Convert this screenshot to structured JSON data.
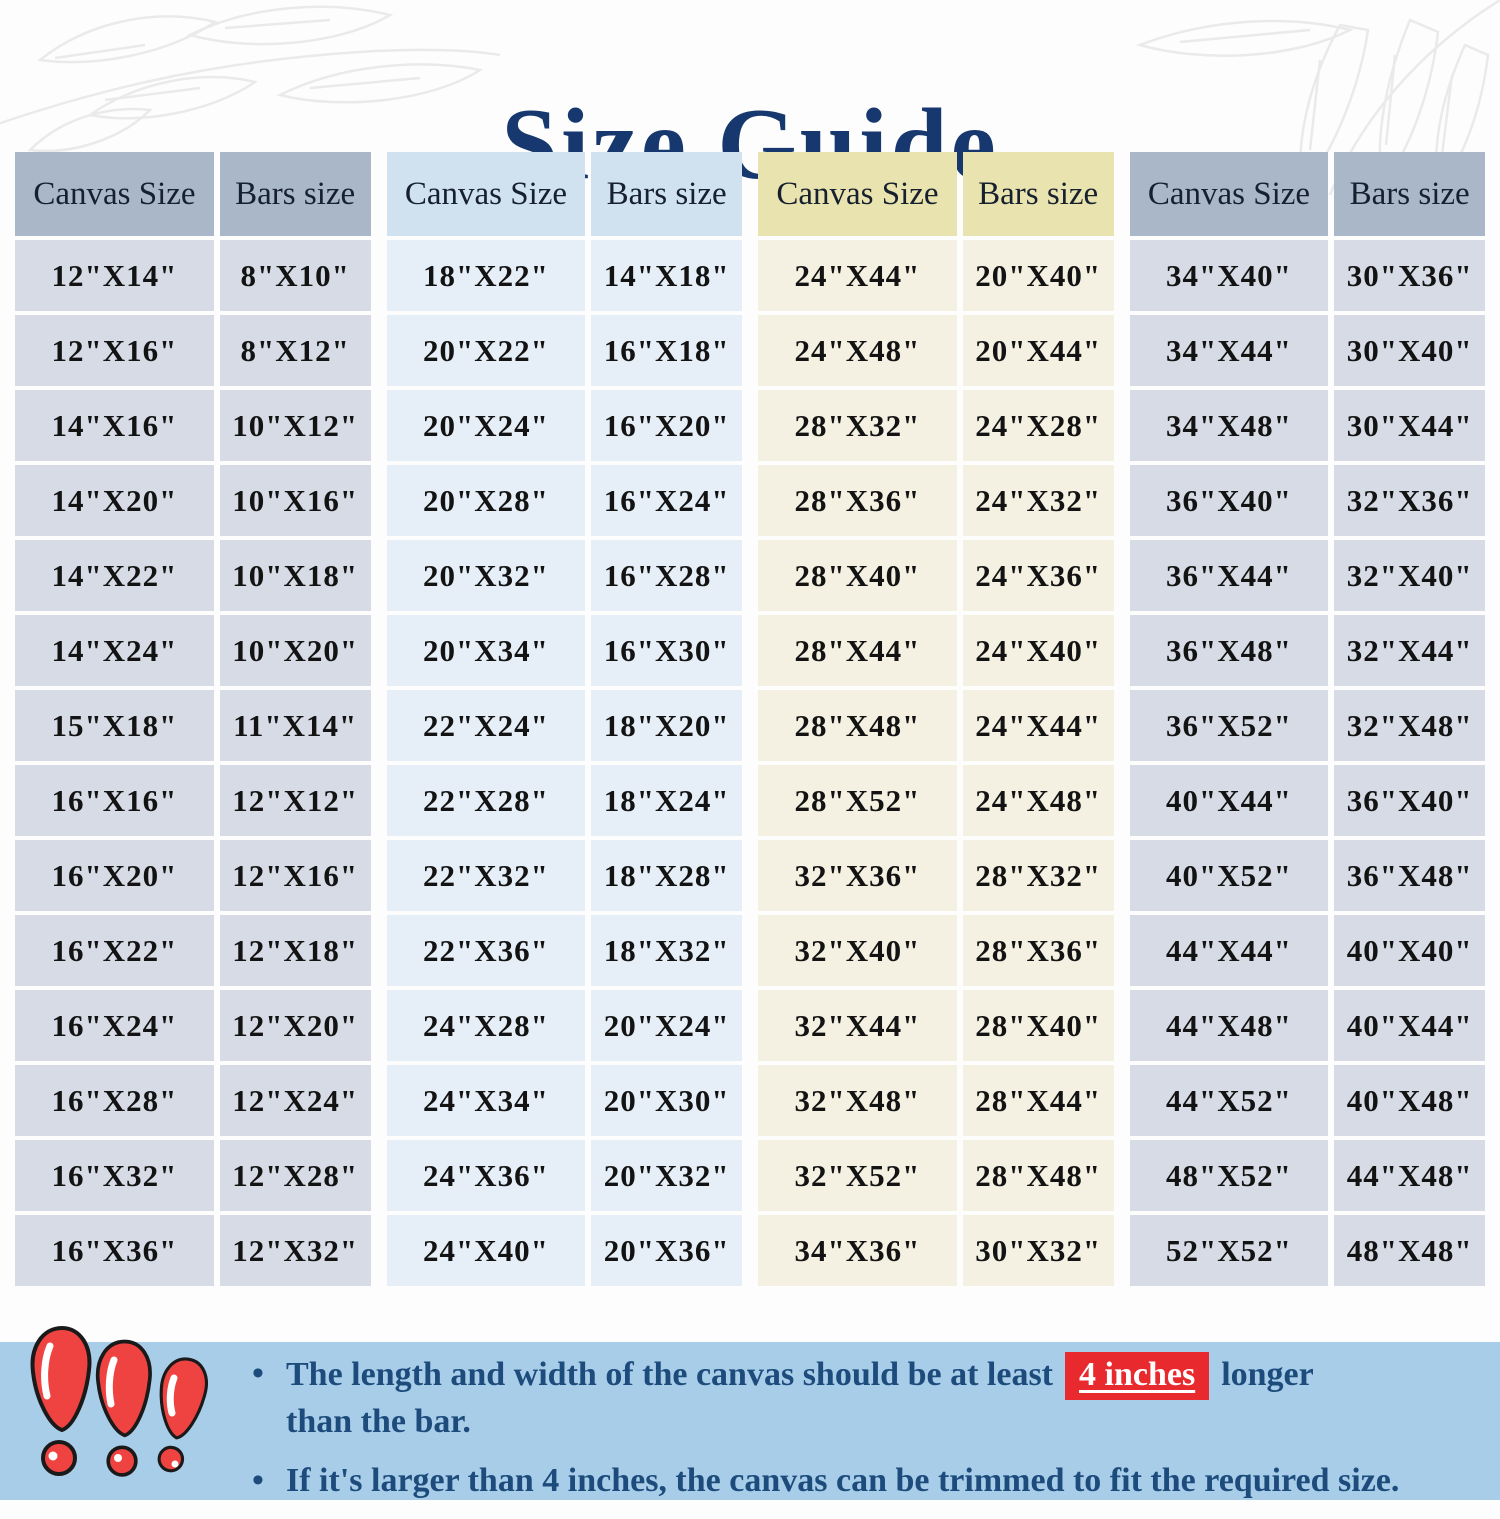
{
  "title": "Size Guide",
  "tables": [
    {
      "headers": [
        "Canvas Size",
        "Bars size"
      ],
      "header_bg": "#a9b7c9",
      "row_bg": "#d6dbe5",
      "rows": [
        [
          "12\"X14\"",
          "8\"X10\""
        ],
        [
          "12\"X16\"",
          "8\"X12\""
        ],
        [
          "14\"X16\"",
          "10\"X12\""
        ],
        [
          "14\"X20\"",
          "10\"X16\""
        ],
        [
          "14\"X22\"",
          "10\"X18\""
        ],
        [
          "14\"X24\"",
          "10\"X20\""
        ],
        [
          "15\"X18\"",
          "11\"X14\""
        ],
        [
          "16\"X16\"",
          "12\"X12\""
        ],
        [
          "16\"X20\"",
          "12\"X16\""
        ],
        [
          "16\"X22\"",
          "12\"X18\""
        ],
        [
          "16\"X24\"",
          "12\"X20\""
        ],
        [
          "16\"X28\"",
          "12\"X24\""
        ],
        [
          "16\"X32\"",
          "12\"X28\""
        ],
        [
          "16\"X36\"",
          "12\"X32\""
        ]
      ]
    },
    {
      "headers": [
        "Canvas Size",
        "Bars size"
      ],
      "header_bg": "#d0e2f0",
      "row_bg": "#e6eff7",
      "rows": [
        [
          "18\"X22\"",
          "14\"X18\""
        ],
        [
          "20\"X22\"",
          "16\"X18\""
        ],
        [
          "20\"X24\"",
          "16\"X20\""
        ],
        [
          "20\"X28\"",
          "16\"X24\""
        ],
        [
          "20\"X32\"",
          "16\"X28\""
        ],
        [
          "20\"X34\"",
          "16\"X30\""
        ],
        [
          "22\"X24\"",
          "18\"X20\""
        ],
        [
          "22\"X28\"",
          "18\"X24\""
        ],
        [
          "22\"X32\"",
          "18\"X28\""
        ],
        [
          "22\"X36\"",
          "18\"X32\""
        ],
        [
          "24\"X28\"",
          "20\"X24\""
        ],
        [
          "24\"X34\"",
          "20\"X30\""
        ],
        [
          "24\"X36\"",
          "20\"X32\""
        ],
        [
          "24\"X40\"",
          "20\"X36\""
        ]
      ]
    },
    {
      "headers": [
        "Canvas Size",
        "Bars size"
      ],
      "header_bg": "#e9e3af",
      "row_bg": "#f4f1e2",
      "rows": [
        [
          "24\"X44\"",
          "20\"X40\""
        ],
        [
          "24\"X48\"",
          "20\"X44\""
        ],
        [
          "28\"X32\"",
          "24\"X28\""
        ],
        [
          "28\"X36\"",
          "24\"X32\""
        ],
        [
          "28\"X40\"",
          "24\"X36\""
        ],
        [
          "28\"X44\"",
          "24\"X40\""
        ],
        [
          "28\"X48\"",
          "24\"X44\""
        ],
        [
          "28\"X52\"",
          "24\"X48\""
        ],
        [
          "32\"X36\"",
          "28\"X32\""
        ],
        [
          "32\"X40\"",
          "28\"X36\""
        ],
        [
          "32\"X44\"",
          "28\"X40\""
        ],
        [
          "32\"X48\"",
          "28\"X44\""
        ],
        [
          "32\"X52\"",
          "28\"X48\""
        ],
        [
          "34\"X36\"",
          "30\"X32\""
        ]
      ]
    },
    {
      "headers": [
        "Canvas Size",
        "Bars size"
      ],
      "header_bg": "#a9b7c9",
      "row_bg": "#d6dbe5",
      "rows": [
        [
          "34\"X40\"",
          "30\"X36\""
        ],
        [
          "34\"X44\"",
          "30\"X40\""
        ],
        [
          "34\"X48\"",
          "30\"X44\""
        ],
        [
          "36\"X40\"",
          "32\"X36\""
        ],
        [
          "36\"X44\"",
          "32\"X40\""
        ],
        [
          "36\"X48\"",
          "32\"X44\""
        ],
        [
          "36\"X52\"",
          "32\"X48\""
        ],
        [
          "40\"X44\"",
          "36\"X40\""
        ],
        [
          "40\"X52\"",
          "36\"X48\""
        ],
        [
          "44\"X44\"",
          "40\"X40\""
        ],
        [
          "44\"X48\"",
          "40\"X44\""
        ],
        [
          "44\"X52\"",
          "40\"X48\""
        ],
        [
          "48\"X52\"",
          "44\"X48\""
        ],
        [
          "52\"X52\"",
          "48\"X48\""
        ]
      ]
    }
  ],
  "notes": {
    "bullet": "•",
    "bullet1_pre": "The length and width of the canvas should be at least",
    "bullet1_highlight": "4 inches",
    "bullet1_post": "longer",
    "bullet1_line2": "than the bar.",
    "bullet2": "If it's larger than 4 inches, the canvas can be trimmed to fit the required size."
  },
  "icons": {
    "warning": "triple-exclamation-icon"
  },
  "colors": {
    "title": "#16386e",
    "page_bg": "#fdfdfd",
    "slate_header": "#a9b7c9",
    "slate_row": "#d6dbe5",
    "blue_header": "#d0e2f0",
    "blue_row": "#e6eff7",
    "cream_header": "#e9e3af",
    "cream_row": "#f4f1e2",
    "band_bg": "#a8cde9",
    "note_text": "#1d4b7c",
    "highlight_bg": "#e8292d",
    "highlight_text": "#ffffff",
    "warning_red": "#ef4342"
  }
}
